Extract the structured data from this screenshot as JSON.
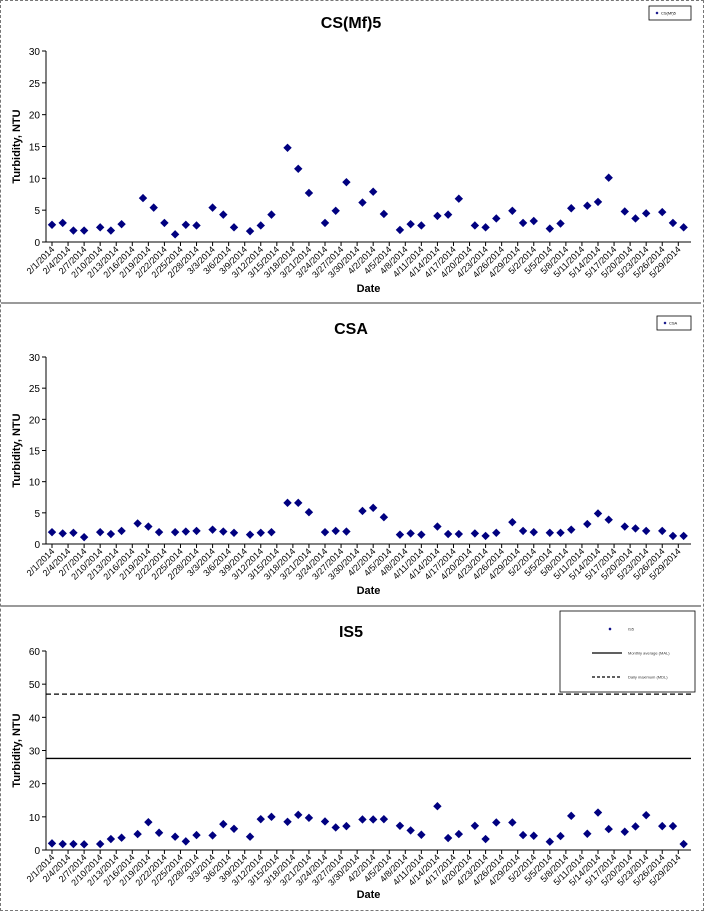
{
  "colors": {
    "marker": "#000080",
    "axis": "#000000",
    "ref_line": "#000000"
  },
  "chart_data": [
    {
      "type": "scatter",
      "title": "CS(Mf)5",
      "xlabel": "Date",
      "ylabel": "Turbidity, NTU",
      "ylim": [
        0,
        30
      ],
      "yticks": [
        0,
        5,
        10,
        15,
        20,
        25,
        30
      ],
      "grid": false,
      "legend_position": "top-right",
      "legend": [
        {
          "label": "CS(Mf)5",
          "marker": "diamond"
        }
      ],
      "tick_labels": [
        "2/1/2014",
        "2/4/2014",
        "2/7/2014",
        "2/10/2014",
        "2/13/2014",
        "2/16/2014",
        "2/19/2014",
        "2/22/2014",
        "2/25/2014",
        "2/28/2014",
        "3/3/2014",
        "3/6/2014",
        "3/9/2014",
        "3/12/2014",
        "3/15/2014",
        "3/18/2014",
        "3/21/2014",
        "3/24/2014",
        "3/27/2014",
        "3/30/2014",
        "4/2/2014",
        "4/5/2014",
        "4/8/2014",
        "4/11/2014",
        "4/14/2014",
        "4/17/2014",
        "4/20/2014",
        "4/23/2014",
        "4/26/2014",
        "4/29/2014",
        "5/2/2014",
        "5/5/2014",
        "5/8/2014",
        "5/11/2014",
        "5/14/2014",
        "5/17/2014",
        "5/20/2014",
        "5/23/2014",
        "5/26/2014",
        "5/29/2014"
      ],
      "series": [
        {
          "name": "CS(Mf)5",
          "marker": "diamond",
          "x": [
            "2/1/2014",
            "2/3/2014",
            "2/5/2014",
            "2/7/2014",
            "2/10/2014",
            "2/12/2014",
            "2/14/2014",
            "2/18/2014",
            "2/20/2014",
            "2/22/2014",
            "2/24/2014",
            "2/26/2014",
            "2/28/2014",
            "3/3/2014",
            "3/5/2014",
            "3/7/2014",
            "3/10/2014",
            "3/12/2014",
            "3/14/2014",
            "3/17/2014",
            "3/19/2014",
            "3/21/2014",
            "3/24/2014",
            "3/26/2014",
            "3/28/2014",
            "3/31/2014",
            "4/2/2014",
            "4/4/2014",
            "4/7/2014",
            "4/9/2014",
            "4/11/2014",
            "4/14/2014",
            "4/16/2014",
            "4/18/2014",
            "4/21/2014",
            "4/23/2014",
            "4/25/2014",
            "4/28/2014",
            "4/30/2014",
            "5/2/2014",
            "5/5/2014",
            "5/7/2014",
            "5/9/2014",
            "5/12/2014",
            "5/14/2014",
            "5/16/2014",
            "5/19/2014",
            "5/21/2014",
            "5/23/2014",
            "5/26/2014",
            "5/28/2014",
            "5/30/2014"
          ],
          "y": [
            2.7,
            3.0,
            1.8,
            1.8,
            2.3,
            1.8,
            2.8,
            6.9,
            5.4,
            3.0,
            1.2,
            2.7,
            2.6,
            5.4,
            4.3,
            2.3,
            1.7,
            2.6,
            4.3,
            14.8,
            11.5,
            7.7,
            3.0,
            4.9,
            9.4,
            6.2,
            7.9,
            4.4,
            1.9,
            2.8,
            2.6,
            4.1,
            4.3,
            6.8,
            2.6,
            2.3,
            3.7,
            4.9,
            3.0,
            3.3,
            2.1,
            2.9,
            5.3,
            5.7,
            6.3,
            10.1,
            4.8,
            3.7,
            4.5,
            4.7,
            3.0,
            2.3
          ]
        }
      ]
    },
    {
      "type": "scatter",
      "title": "CSA",
      "xlabel": "Date",
      "ylabel": "Turbidity, NTU",
      "ylim": [
        0,
        30
      ],
      "yticks": [
        0,
        5,
        10,
        15,
        20,
        25,
        30
      ],
      "grid": false,
      "legend_position": "top-right",
      "legend": [
        {
          "label": "CSA",
          "marker": "diamond"
        }
      ],
      "tick_labels": [
        "2/1/2014",
        "2/4/2014",
        "2/7/2014",
        "2/10/2014",
        "2/13/2014",
        "2/16/2014",
        "2/19/2014",
        "2/22/2014",
        "2/25/2014",
        "2/28/2014",
        "3/3/2014",
        "3/6/2014",
        "3/9/2014",
        "3/12/2014",
        "3/15/2014",
        "3/18/2014",
        "3/21/2014",
        "3/24/2014",
        "3/27/2014",
        "3/30/2014",
        "4/2/2014",
        "4/5/2014",
        "4/8/2014",
        "4/11/2014",
        "4/14/2014",
        "4/17/2014",
        "4/20/2014",
        "4/23/2014",
        "4/26/2014",
        "4/29/2014",
        "5/2/2014",
        "5/5/2014",
        "5/8/2014",
        "5/11/2014",
        "5/14/2014",
        "5/17/2014",
        "5/20/2014",
        "5/23/2014",
        "5/26/2014",
        "5/29/2014"
      ],
      "series": [
        {
          "name": "CSA",
          "marker": "diamond",
          "x": [
            "2/1/2014",
            "2/3/2014",
            "2/5/2014",
            "2/7/2014",
            "2/10/2014",
            "2/12/2014",
            "2/14/2014",
            "2/17/2014",
            "2/19/2014",
            "2/21/2014",
            "2/24/2014",
            "2/26/2014",
            "2/28/2014",
            "3/3/2014",
            "3/5/2014",
            "3/7/2014",
            "3/10/2014",
            "3/12/2014",
            "3/14/2014",
            "3/17/2014",
            "3/19/2014",
            "3/21/2014",
            "3/24/2014",
            "3/26/2014",
            "3/28/2014",
            "3/31/2014",
            "4/2/2014",
            "4/4/2014",
            "4/7/2014",
            "4/9/2014",
            "4/11/2014",
            "4/14/2014",
            "4/16/2014",
            "4/18/2014",
            "4/21/2014",
            "4/23/2014",
            "4/25/2014",
            "4/28/2014",
            "4/30/2014",
            "5/2/2014",
            "5/5/2014",
            "5/7/2014",
            "5/9/2014",
            "5/12/2014",
            "5/14/2014",
            "5/16/2014",
            "5/19/2014",
            "5/21/2014",
            "5/23/2014",
            "5/26/2014",
            "5/28/2014",
            "5/30/2014"
          ],
          "y": [
            1.9,
            1.7,
            1.8,
            1.1,
            1.9,
            1.6,
            2.1,
            3.3,
            2.8,
            1.9,
            1.9,
            2.0,
            2.1,
            2.3,
            2.0,
            1.8,
            1.5,
            1.8,
            1.9,
            6.6,
            6.6,
            5.1,
            1.9,
            2.1,
            2.0,
            5.3,
            5.8,
            4.3,
            1.5,
            1.7,
            1.5,
            2.8,
            1.6,
            1.6,
            1.7,
            1.3,
            1.8,
            3.5,
            2.1,
            1.9,
            1.8,
            1.8,
            2.3,
            3.2,
            4.9,
            3.9,
            2.8,
            2.5,
            2.1,
            2.1,
            1.3,
            1.3
          ]
        }
      ]
    },
    {
      "type": "scatter",
      "title": "IS5",
      "xlabel": "Date",
      "ylabel": "Turbidity, NTU",
      "ylim": [
        0,
        60
      ],
      "yticks": [
        0,
        10,
        20,
        30,
        40,
        50,
        60
      ],
      "grid": false,
      "legend_position": "top-right",
      "legend": [
        {
          "label": "IS5",
          "marker": "diamond"
        },
        {
          "label": "Monthly average (MAL)",
          "style": "solid"
        },
        {
          "label": "Daily maximum (MDL)",
          "style": "dashed"
        }
      ],
      "reference_lines": [
        {
          "name": "Monthly average (MAL)",
          "value": 27.6,
          "style": "solid"
        },
        {
          "name": "Daily maximum (MDL)",
          "value": 47.0,
          "style": "dashed"
        }
      ],
      "tick_labels": [
        "2/1/2014",
        "2/4/2014",
        "2/7/2014",
        "2/10/2014",
        "2/13/2014",
        "2/16/2014",
        "2/19/2014",
        "2/22/2014",
        "2/25/2014",
        "2/28/2014",
        "3/3/2014",
        "3/6/2014",
        "3/9/2014",
        "3/12/2014",
        "3/15/2014",
        "3/18/2014",
        "3/21/2014",
        "3/24/2014",
        "3/27/2014",
        "3/30/2014",
        "4/2/2014",
        "4/5/2014",
        "4/8/2014",
        "4/11/2014",
        "4/14/2014",
        "4/17/2014",
        "4/20/2014",
        "4/23/2014",
        "4/26/2014",
        "4/29/2014",
        "5/2/2014",
        "5/5/2014",
        "5/8/2014",
        "5/11/2014",
        "5/14/2014",
        "5/17/2014",
        "5/20/2014",
        "5/23/2014",
        "5/26/2014",
        "5/29/2014"
      ],
      "series": [
        {
          "name": "IS5",
          "marker": "diamond",
          "x": [
            "2/1/2014",
            "2/3/2014",
            "2/5/2014",
            "2/7/2014",
            "2/10/2014",
            "2/12/2014",
            "2/14/2014",
            "2/17/2014",
            "2/19/2014",
            "2/21/2014",
            "2/24/2014",
            "2/26/2014",
            "2/28/2014",
            "3/3/2014",
            "3/5/2014",
            "3/7/2014",
            "3/10/2014",
            "3/12/2014",
            "3/14/2014",
            "3/17/2014",
            "3/19/2014",
            "3/21/2014",
            "3/24/2014",
            "3/26/2014",
            "3/28/2014",
            "3/31/2014",
            "4/2/2014",
            "4/4/2014",
            "4/7/2014",
            "4/9/2014",
            "4/11/2014",
            "4/14/2014",
            "4/16/2014",
            "4/18/2014",
            "4/21/2014",
            "4/23/2014",
            "4/25/2014",
            "4/28/2014",
            "4/30/2014",
            "5/2/2014",
            "5/5/2014",
            "5/7/2014",
            "5/9/2014",
            "5/12/2014",
            "5/14/2014",
            "5/16/2014",
            "5/19/2014",
            "5/21/2014",
            "5/23/2014",
            "5/26/2014",
            "5/28/2014",
            "5/30/2014"
          ],
          "y": [
            2.0,
            1.8,
            1.8,
            1.7,
            1.8,
            3.3,
            3.7,
            4.8,
            8.4,
            5.2,
            4.0,
            2.6,
            4.5,
            4.4,
            7.8,
            6.4,
            4.0,
            9.3,
            10.0,
            8.5,
            10.6,
            9.7,
            8.6,
            6.8,
            7.2,
            9.2,
            9.2,
            9.3,
            7.3,
            5.9,
            4.6,
            13.2,
            3.6,
            4.8,
            7.3,
            3.3,
            8.3,
            8.3,
            4.5,
            4.3,
            2.5,
            4.2,
            10.3,
            4.9,
            11.3,
            6.3,
            5.5,
            7.1,
            10.5,
            7.2,
            7.2,
            1.8
          ]
        }
      ]
    }
  ]
}
